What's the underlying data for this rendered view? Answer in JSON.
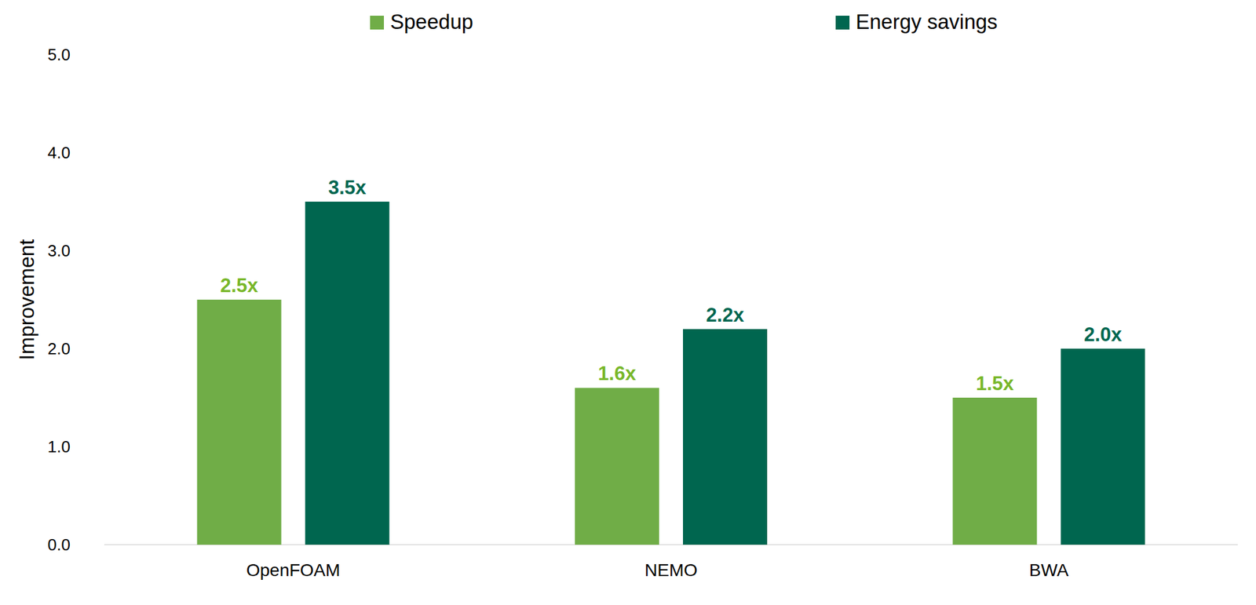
{
  "chart_data": {
    "type": "bar",
    "y_label": "Improvement",
    "categories": [
      "OpenFOAM",
      "NEMO",
      "BWA"
    ],
    "series": [
      {
        "name": "Speedup",
        "color": "#70ad47",
        "values": [
          2.5,
          1.6,
          1.5
        ],
        "value_labels": [
          "2.5x",
          "1.6x",
          "1.5x"
        ]
      },
      {
        "name": "Energy savings",
        "color": "#00664f",
        "values": [
          3.5,
          2.2,
          2.0
        ],
        "value_labels": [
          "3.5x",
          "2.2x",
          "2.0x"
        ]
      }
    ],
    "ylim": [
      0,
      5
    ],
    "yticks": [
      {
        "value": 0,
        "label": "0.0"
      },
      {
        "value": 1,
        "label": "1.0"
      },
      {
        "value": 2,
        "label": "2.0"
      },
      {
        "value": 3,
        "label": "3.0"
      },
      {
        "value": 4,
        "label": "4.0"
      },
      {
        "value": 5,
        "label": "5.0"
      }
    ],
    "grid": false,
    "legend": "top",
    "data_labels": true
  }
}
